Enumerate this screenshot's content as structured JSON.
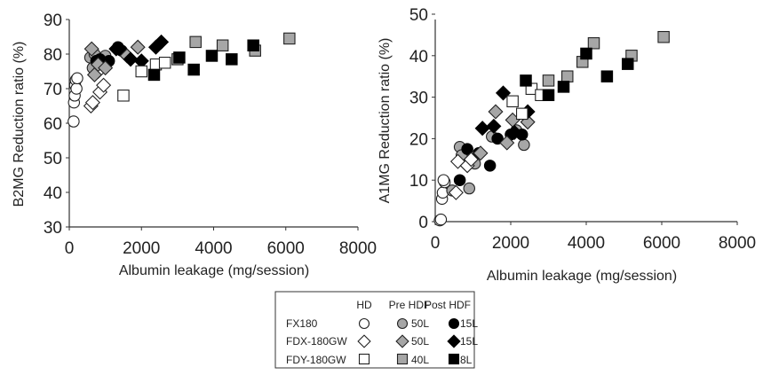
{
  "chart_data": [
    {
      "type": "scatter",
      "xlabel": "Albumin leakage (mg/session)",
      "ylabel": "B2MG Reduction ratio (%)",
      "xlim": [
        0,
        8000
      ],
      "ylim": [
        30,
        90
      ],
      "xticks": [
        "0",
        "2000",
        "4000",
        "6000",
        "8000"
      ],
      "yticks": [
        "30",
        "40",
        "50",
        "60",
        "70",
        "80",
        "90"
      ],
      "grid": false,
      "series": [
        {
          "key": "fx_hd",
          "values": [
            [
              120,
              60.5
            ],
            [
              130,
              66
            ],
            [
              150,
              68
            ],
            [
              160,
              71
            ],
            [
              180,
              72.5
            ],
            [
              200,
              70
            ],
            [
              220,
              73
            ]
          ]
        },
        {
          "key": "fx_pre",
          "values": [
            [
              580,
              79
            ],
            [
              650,
              76
            ],
            [
              700,
              80
            ],
            [
              750,
              78
            ],
            [
              1000,
              79.5
            ]
          ]
        },
        {
          "key": "fx_post",
          "values": [
            [
              750,
              78
            ],
            [
              850,
              78.5
            ],
            [
              950,
              77
            ],
            [
              1100,
              78
            ],
            [
              1350,
              82
            ],
            [
              1450,
              81
            ]
          ]
        },
        {
          "key": "fdx_hd",
          "values": [
            [
              600,
              65
            ],
            [
              650,
              66
            ],
            [
              850,
              69
            ],
            [
              950,
              71
            ],
            [
              800,
              75
            ]
          ]
        },
        {
          "key": "fdx_pre",
          "values": [
            [
              620,
              81.5
            ],
            [
              700,
              74
            ],
            [
              800,
              77
            ],
            [
              1000,
              76
            ],
            [
              1600,
              79.5
            ],
            [
              1900,
              82
            ]
          ]
        },
        {
          "key": "fdx_post",
          "values": [
            [
              1300,
              81.5
            ],
            [
              1700,
              78.5
            ],
            [
              2000,
              78
            ],
            [
              2400,
              82
            ],
            [
              2550,
              83.5
            ]
          ]
        },
        {
          "key": "fdy_hd",
          "values": [
            [
              1500,
              68
            ],
            [
              2000,
              75
            ],
            [
              2400,
              77
            ],
            [
              2650,
              77.5
            ]
          ]
        },
        {
          "key": "fdy_pre",
          "values": [
            [
              3500,
              83.5
            ],
            [
              4250,
              82.5
            ],
            [
              3000,
              78.5
            ],
            [
              5150,
              81
            ],
            [
              6100,
              84.5
            ]
          ]
        },
        {
          "key": "fdy_post",
          "values": [
            [
              2350,
              74
            ],
            [
              3050,
              79
            ],
            [
              3450,
              75.5
            ],
            [
              3950,
              79.5
            ],
            [
              4500,
              78.5
            ],
            [
              5100,
              82.5
            ]
          ]
        }
      ]
    },
    {
      "type": "scatter",
      "xlabel": "Albumin leakage (mg/session)",
      "ylabel": "A1MG Reduction ratio (%)",
      "xlim": [
        0,
        8000
      ],
      "ylim": [
        0,
        50
      ],
      "xticks": [
        "0",
        "2000",
        "4000",
        "6000",
        "8000"
      ],
      "yticks": [
        "0",
        "10",
        "20",
        "30",
        "40",
        "50"
      ],
      "grid": false,
      "series": [
        {
          "key": "fx_hd",
          "values": [
            [
              120,
              0.3
            ],
            [
              150,
              0.5
            ],
            [
              180,
              5.5
            ],
            [
              200,
              7
            ],
            [
              250,
              9.5
            ],
            [
              220,
              10
            ]
          ]
        },
        {
          "key": "fx_pre",
          "values": [
            [
              450,
              7.5
            ],
            [
              650,
              18
            ],
            [
              700,
              16
            ],
            [
              900,
              8
            ],
            [
              1050,
              14
            ],
            [
              1500,
              20.5
            ],
            [
              2150,
              22
            ],
            [
              2350,
              18.5
            ]
          ]
        },
        {
          "key": "fx_post",
          "values": [
            [
              650,
              10
            ],
            [
              850,
              17.5
            ],
            [
              1150,
              16.5
            ],
            [
              1450,
              13.5
            ],
            [
              1650,
              20
            ],
            [
              2000,
              21
            ],
            [
              2300,
              21
            ]
          ]
        },
        {
          "key": "fdx_hd",
          "values": [
            [
              600,
              14.5
            ],
            [
              850,
              13.5
            ],
            [
              950,
              15
            ],
            [
              550,
              7
            ]
          ]
        },
        {
          "key": "fdx_pre",
          "values": [
            [
              1200,
              16.5
            ],
            [
              1600,
              26.5
            ],
            [
              1900,
              19
            ],
            [
              2050,
              24.5
            ],
            [
              2450,
              24
            ]
          ]
        },
        {
          "key": "fdx_post",
          "values": [
            [
              1250,
              22.5
            ],
            [
              1550,
              23
            ],
            [
              1800,
              31
            ],
            [
              2100,
              21.5
            ],
            [
              2450,
              26.5
            ]
          ]
        },
        {
          "key": "fdy_hd",
          "values": [
            [
              2050,
              29
            ],
            [
              2300,
              26
            ],
            [
              2550,
              32
            ],
            [
              2800,
              30.5
            ]
          ]
        },
        {
          "key": "fdy_pre",
          "values": [
            [
              3000,
              34
            ],
            [
              3500,
              35
            ],
            [
              3900,
              38.5
            ],
            [
              4200,
              43
            ],
            [
              5200,
              40
            ],
            [
              6050,
              44.5
            ]
          ]
        },
        {
          "key": "fdy_post",
          "values": [
            [
              2400,
              34
            ],
            [
              3000,
              30.5
            ],
            [
              3400,
              32.5
            ],
            [
              4000,
              40.5
            ],
            [
              4550,
              35
            ],
            [
              5100,
              38
            ]
          ]
        }
      ]
    }
  ],
  "legend": {
    "headers": [
      "HD",
      "Pre HDF",
      "Post HDF"
    ],
    "rows": [
      {
        "label": "FX180",
        "pre": "50L",
        "post": "15L"
      },
      {
        "label": "FDX-180GW",
        "pre": "50L",
        "post": "15L"
      },
      {
        "label": "FDY-180GW",
        "pre": "40L",
        "post": "8L"
      }
    ]
  },
  "colors": {
    "white": "#ffffff",
    "gray": "#a6a6a6",
    "black": "#000000",
    "edge": "#222222"
  }
}
